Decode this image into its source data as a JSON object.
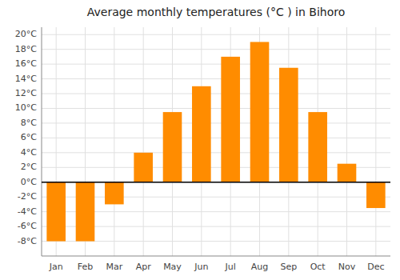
{
  "chart_data": {
    "type": "bar",
    "title": "Average monthly temperatures (°C ) in Bihoro",
    "categories": [
      "Jan",
      "Feb",
      "Mar",
      "Apr",
      "May",
      "Jun",
      "Jul",
      "Aug",
      "Sep",
      "Oct",
      "Nov",
      "Dec"
    ],
    "values": [
      -8,
      -8,
      -3,
      4,
      9.5,
      13,
      17,
      19,
      15.5,
      9.5,
      2.5,
      -3.5
    ],
    "color": "#FF8C00",
    "ylim": [
      -10,
      21
    ],
    "yticks": [
      {
        "value": -8,
        "label": "-8°C"
      },
      {
        "value": -6,
        "label": "-6°C"
      },
      {
        "value": -4,
        "label": "-4°C"
      },
      {
        "value": -2,
        "label": "-2°C"
      },
      {
        "value": 0,
        "label": "0°C"
      },
      {
        "value": 2,
        "label": "2°C"
      },
      {
        "value": 4,
        "label": "4°C"
      },
      {
        "value": 6,
        "label": "6°C"
      },
      {
        "value": 8,
        "label": "8°C"
      },
      {
        "value": 10,
        "label": "10°C"
      },
      {
        "value": 12,
        "label": "12°C"
      },
      {
        "value": 14,
        "label": "14°C"
      },
      {
        "value": 16,
        "label": "16°C"
      },
      {
        "value": 18,
        "label": "18°C"
      },
      {
        "value": 20,
        "label": "20°C"
      }
    ],
    "grid": true
  }
}
